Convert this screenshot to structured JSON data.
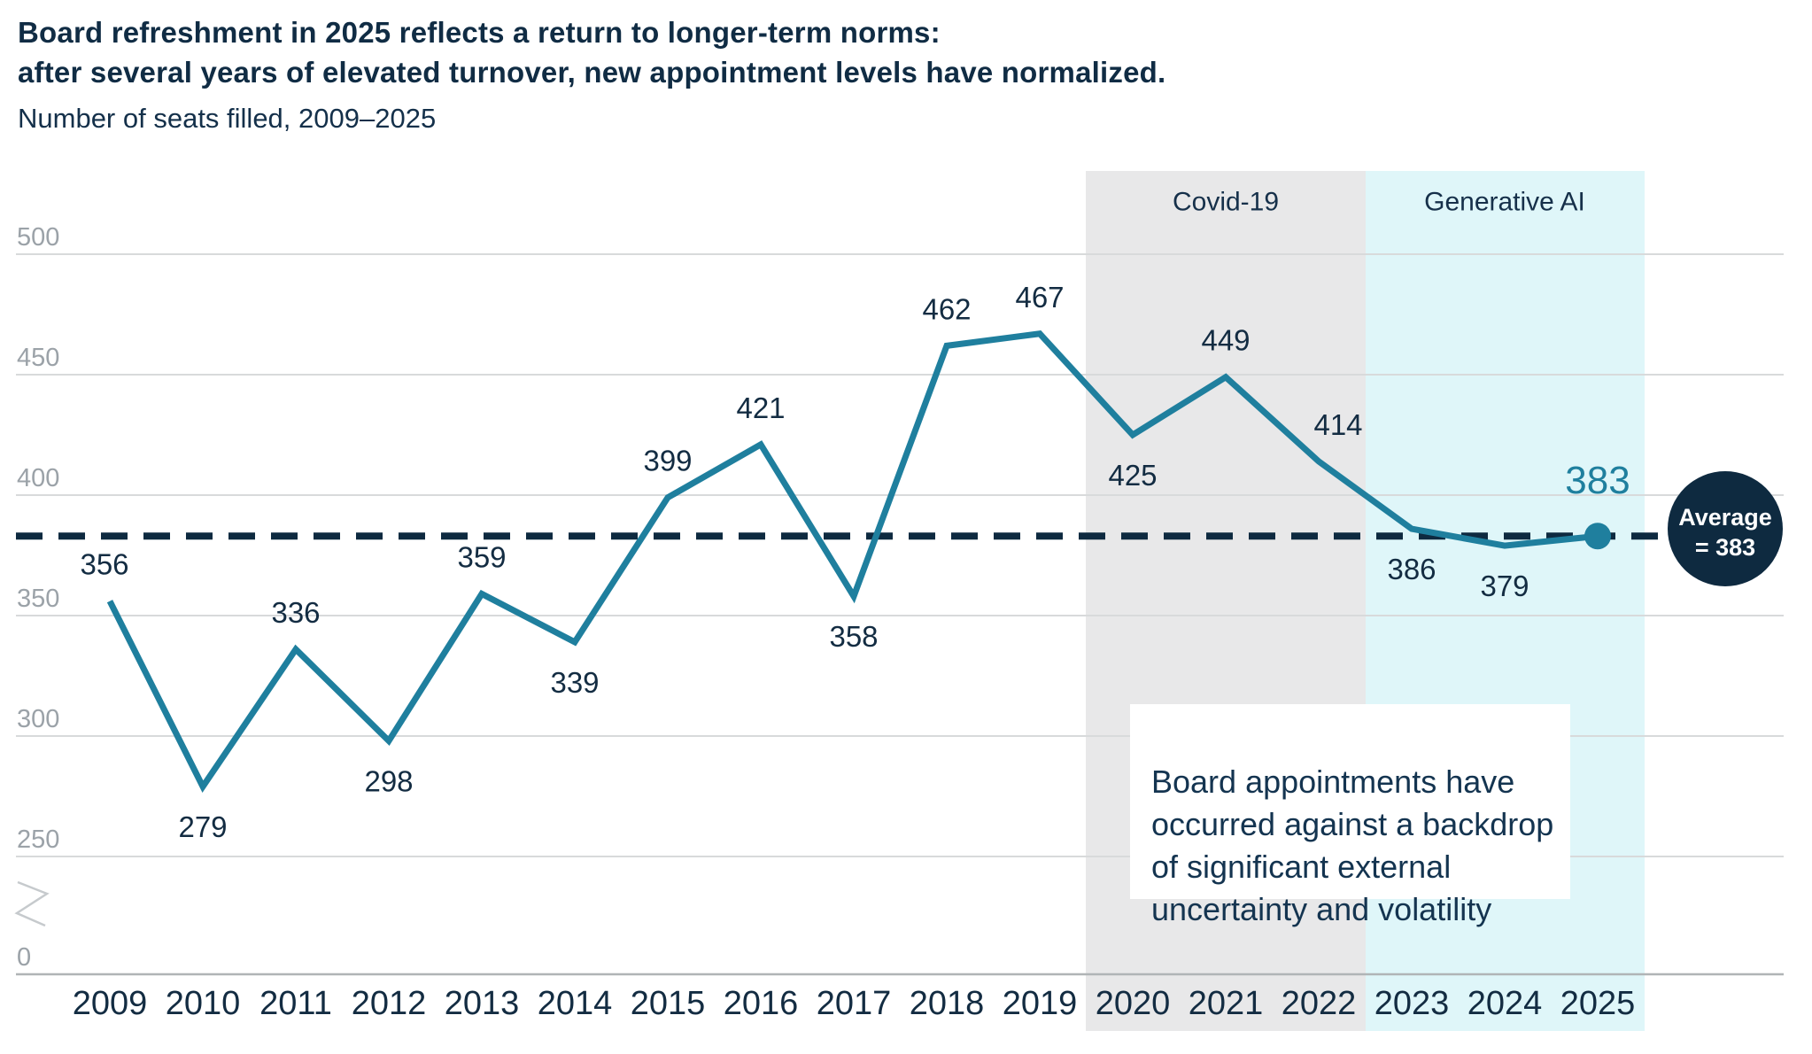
{
  "header": {
    "title_line1": "Board refreshment in 2025 reflects a return to longer-term norms:",
    "title_line2": "after several years of elevated turnover, new appointment levels have normalized.",
    "subtitle": "Number of seats filled, 2009–2025"
  },
  "annotation": {
    "text": "Board appointments have\noccurred against a backdrop\nof significant external\nuncertainty and volatility"
  },
  "average_badge": {
    "line1": "Average",
    "line2": "= 383"
  },
  "chart_data": {
    "type": "line",
    "title": "Board refreshment in 2025 reflects a return to longer-term norms: after several years of elevated turnover, new appointment levels have normalized.",
    "subtitle": "Number of seats filled, 2009–2025",
    "categories": [
      "2009",
      "2010",
      "2011",
      "2012",
      "2013",
      "2014",
      "2015",
      "2016",
      "2017",
      "2018",
      "2019",
      "2020",
      "2021",
      "2022",
      "2023",
      "2024",
      "2025"
    ],
    "values": [
      356,
      279,
      336,
      298,
      359,
      339,
      399,
      421,
      358,
      462,
      467,
      425,
      449,
      414,
      386,
      379,
      383
    ],
    "label_positions": [
      "above",
      "below",
      "above",
      "below",
      "above",
      "below",
      "above",
      "above",
      "below",
      "above",
      "above",
      "below",
      "above",
      "above",
      "below",
      "below",
      "above"
    ],
    "average": 383,
    "highlight_point": {
      "category": "2025",
      "value": 383
    },
    "y_axis": {
      "ticks": [
        500,
        450,
        400,
        350,
        300,
        250,
        0
      ],
      "axis_break": true,
      "ylim_visible": [
        250,
        500
      ]
    },
    "bands": [
      {
        "label": "Covid-19",
        "from": "2020",
        "to": "2022"
      },
      {
        "label": "Generative AI",
        "from": "2023",
        "to": "2025"
      }
    ],
    "legend_position": "none",
    "grid": "horizontal",
    "colors": {
      "line_teal": "#1f7f9e",
      "navy_text": "#132c42",
      "dark_navy": "#0e2a40",
      "band_gray": "#e8e8e9",
      "band_cyan": "#dff6f9",
      "gridline": "#d8dadb",
      "axis_zero_line": "#b0b4b6",
      "tick_label_gray": "#9ba2a8",
      "annotation_text": "#143450",
      "badge_text": "#ffffff"
    },
    "layout_hints": {
      "label_dx": {
        "2022": 22,
        "2009": -6
      },
      "big_label_category": "2025"
    }
  }
}
